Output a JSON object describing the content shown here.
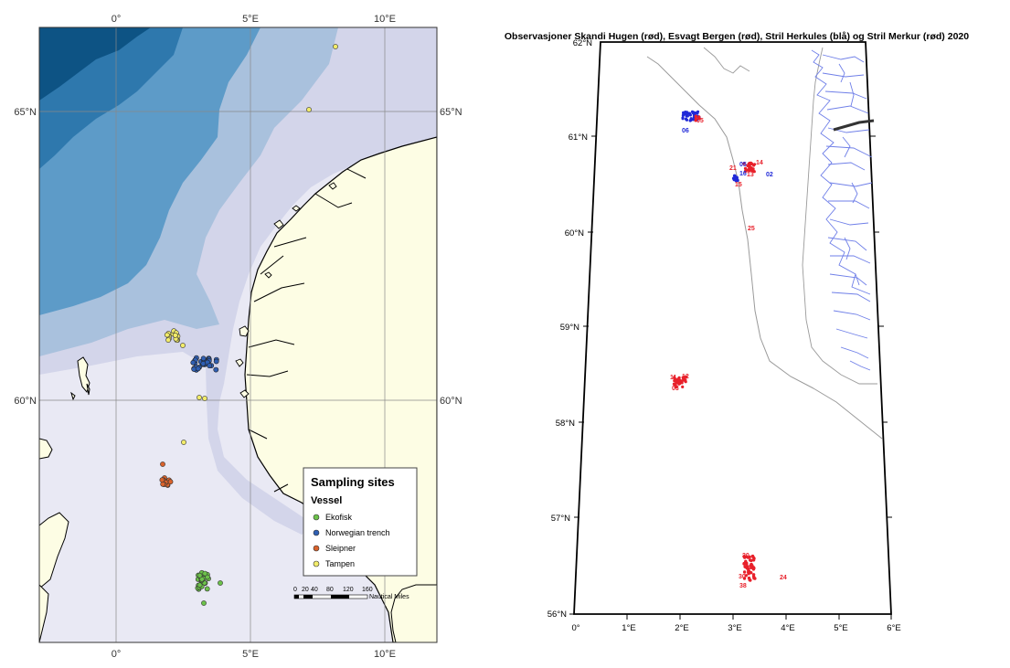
{
  "left_map": {
    "top_lon_labels": [
      "0°",
      "5°E",
      "10°E"
    ],
    "bottom_lon_labels": [
      "0°",
      "5°E",
      "10°E"
    ],
    "lat_labels_left": [
      "65°N",
      "60°N"
    ],
    "lat_labels_right": [
      "65°N",
      "60°N"
    ],
    "legend": {
      "title": "Sampling sites",
      "subtitle": "Vessel",
      "items": [
        {
          "label": "Ekofisk",
          "color": "#6cc24a"
        },
        {
          "label": "Norwegian trench",
          "color": "#2f5fb3"
        },
        {
          "label": "Sleipner",
          "color": "#d9622b"
        },
        {
          "label": "Tampen",
          "color": "#f2ec6a"
        }
      ]
    },
    "scale_bar": {
      "ticks": [
        "0",
        "20",
        "40",
        "80",
        "120",
        "160"
      ],
      "unit": "Nautical Miles"
    },
    "colors": {
      "land": "#fdfde4",
      "sea_shallow": "#e9e9f4",
      "sea_shelf": "#d3d5ea",
      "sea_mid": "#a9c1dd",
      "sea_deep": "#5d9bc8",
      "sea_deeper": "#2e78ad",
      "sea_deepest": "#0d5384"
    }
  },
  "right_map": {
    "title": "Observasjoner Skandi Hugen (rød), Esvagt Bergen (rød), Stril Herkules (blå) og Stril Merkur (rød) 2020",
    "lat_labels": [
      "62°N",
      "61°N",
      "60°N",
      "59°N",
      "58°N",
      "57°N",
      "56°N"
    ],
    "lon_labels": [
      "0°",
      "1°E",
      "2°E",
      "3°E",
      "4°E",
      "5°E",
      "6°E"
    ],
    "point_labels": {
      "blue_cluster_1": "06",
      "red_near_blue_1": "05",
      "blue_label_05": "05",
      "red_14": "14",
      "red_21": "21",
      "blue_16": "16",
      "red_13": "13",
      "blue_02": "02",
      "red_15": "15",
      "red_25": "25",
      "red_11": "11",
      "red_12": "12",
      "red_03": "03",
      "red_30": "30",
      "red_38": "38",
      "red_24": "24",
      "red_20": "20"
    },
    "colors": {
      "red": "#e8202a",
      "blue": "#2029d8",
      "coast": "#6f7fe8"
    }
  }
}
